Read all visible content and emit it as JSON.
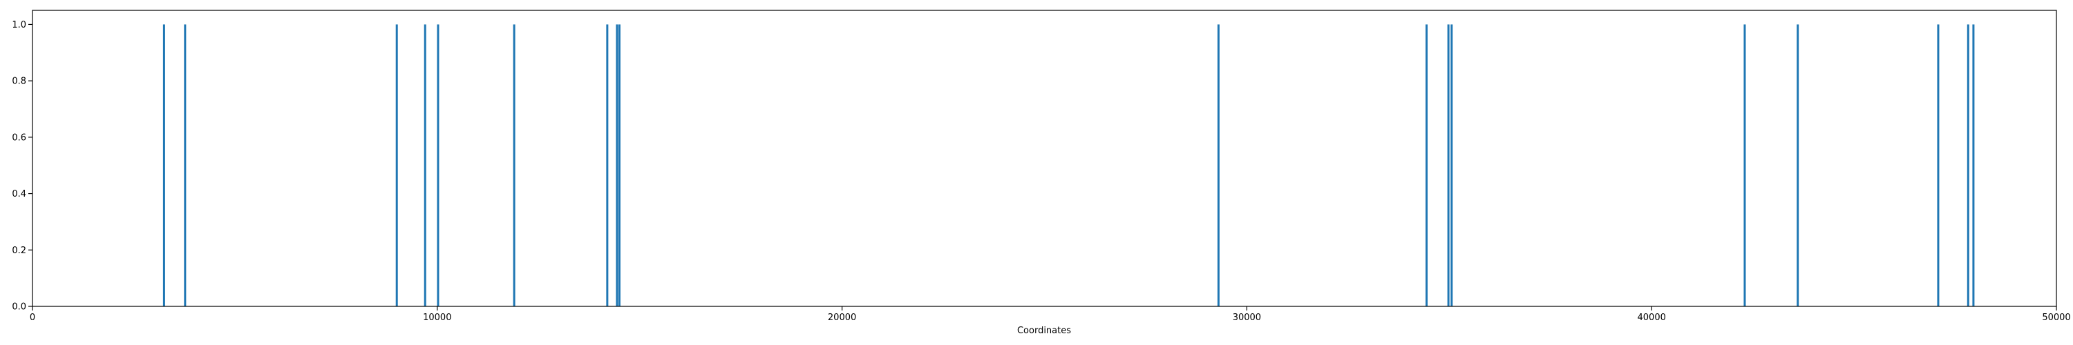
{
  "chart_data": {
    "type": "bar",
    "title": "",
    "xlabel": "Coordinates",
    "ylabel": "",
    "xlim": [
      0,
      50000
    ],
    "ylim": [
      0,
      1.05
    ],
    "grid": false,
    "legend": "none",
    "xticks": [
      0,
      10000,
      20000,
      30000,
      40000,
      50000
    ],
    "xtick_labels": [
      "0",
      "10000",
      "20000",
      "30000",
      "40000",
      "50000"
    ],
    "yticks": [
      0.0,
      0.2,
      0.4,
      0.6,
      0.8,
      1.0
    ],
    "ytick_labels": [
      "0.0",
      "0.2",
      "0.4",
      "0.6",
      "0.8",
      "1.0"
    ],
    "color": "#1f77b4",
    "series": [
      {
        "x": [
          3250,
          3770,
          9000,
          9700,
          10020,
          11900,
          14200,
          14440,
          14500,
          29300,
          34440,
          34980,
          35060,
          42300,
          43610,
          47080,
          47820,
          47950
        ],
        "values": [
          1,
          1,
          1,
          1,
          1,
          1,
          1,
          1,
          1,
          1,
          1,
          1,
          1,
          1,
          1,
          1,
          1,
          1
        ]
      }
    ]
  }
}
